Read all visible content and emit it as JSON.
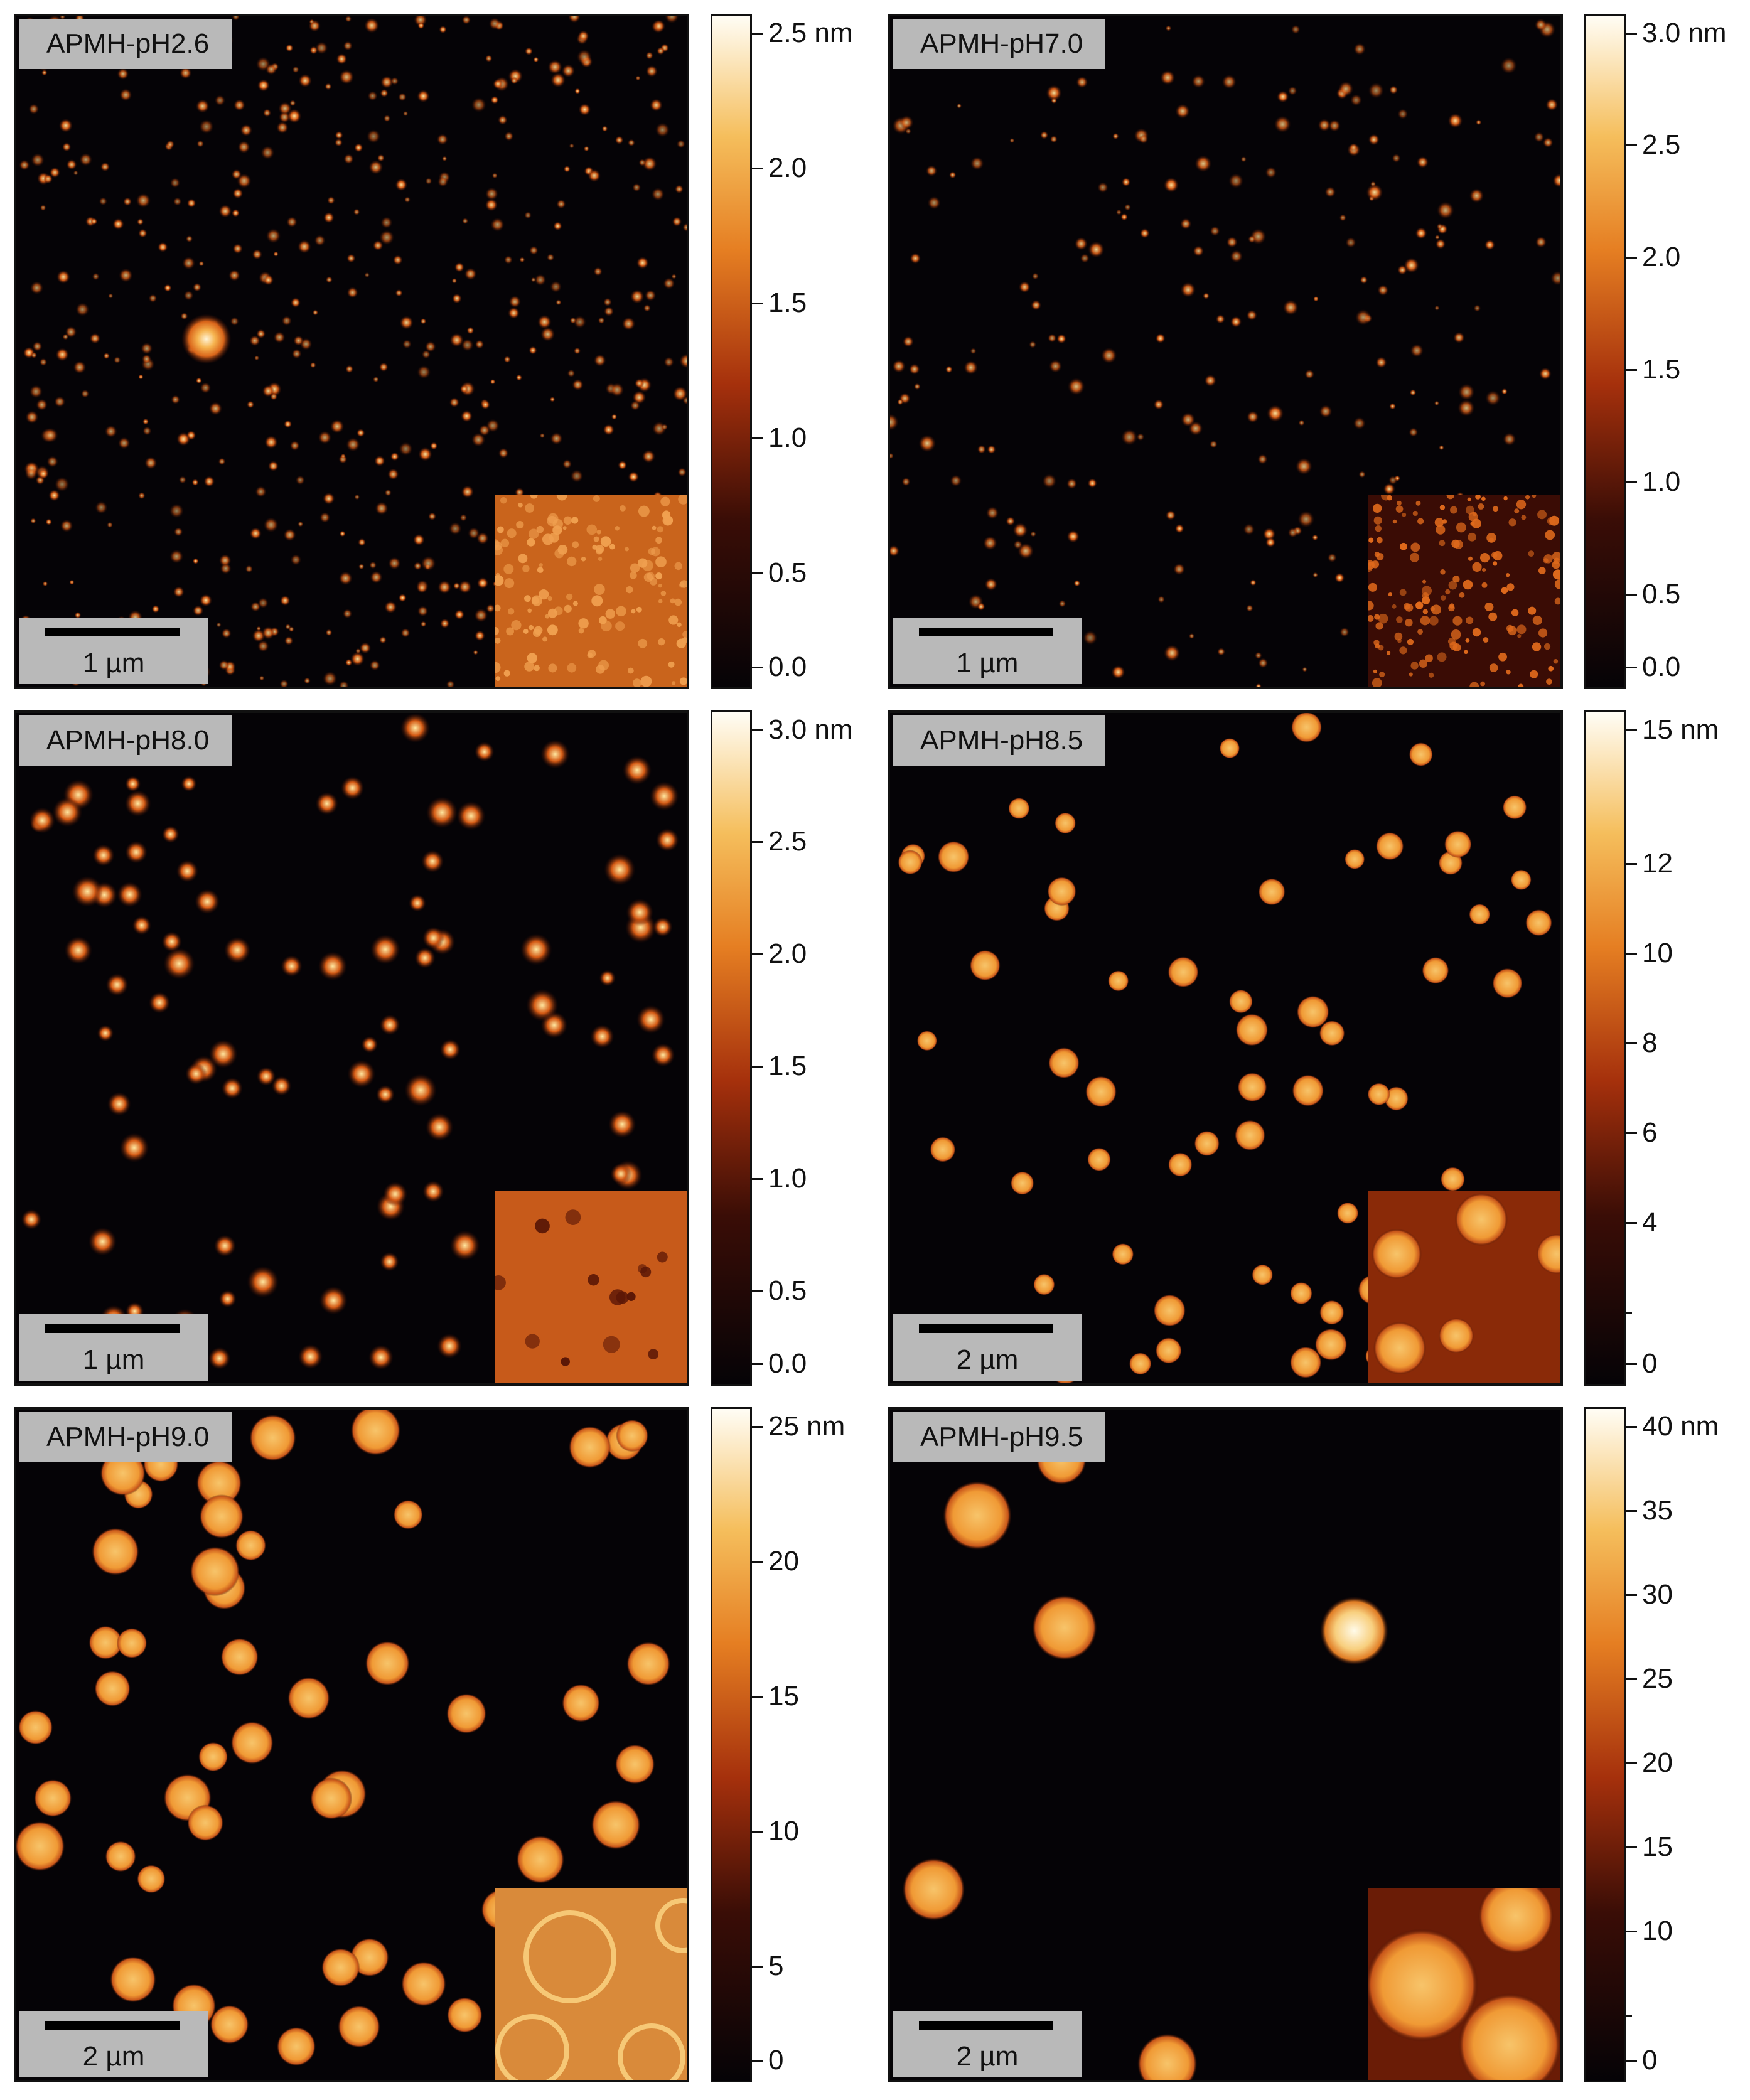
{
  "panels": [
    {
      "id": "p1",
      "label": "APMH-pH2.6",
      "scale": "1 µm",
      "colorbar_max_label": "2.5 nm",
      "colorbar_ticks": [
        "2.0",
        "1.5",
        "1.0",
        "0.5",
        "0.0"
      ]
    },
    {
      "id": "p2",
      "label": "APMH-pH7.0",
      "scale": "1 µm",
      "colorbar_max_label": "3.0 nm",
      "colorbar_ticks": [
        "2.5",
        "2.0",
        "1.5",
        "1.0",
        "0.5",
        "0.0"
      ]
    },
    {
      "id": "p3",
      "label": "APMH-pH8.0",
      "scale": "1 µm",
      "colorbar_max_label": "3.0 nm",
      "colorbar_ticks": [
        "2.5",
        "2.0",
        "1.5",
        "1.0",
        "0.5",
        "0.0"
      ]
    },
    {
      "id": "p4",
      "label": "APMH-pH8.5",
      "scale": "2 µm",
      "colorbar_max_label": "15 nm",
      "colorbar_ticks": [
        "12",
        "10",
        "8",
        "6",
        "4",
        "0"
      ]
    },
    {
      "id": "p5",
      "label": "APMH-pH9.0",
      "scale": "2 µm",
      "colorbar_max_label": "25 nm",
      "colorbar_ticks": [
        "20",
        "15",
        "10",
        "5",
        "0"
      ]
    },
    {
      "id": "p6",
      "label": "APMH-pH9.5",
      "scale": "2 µm",
      "colorbar_max_label": "40 nm",
      "colorbar_ticks": [
        "35",
        "30",
        "25",
        "20",
        "15",
        "10",
        "0"
      ]
    }
  ],
  "colors": {
    "low": "#050306",
    "mid": "#b83a10",
    "high": "#f4b24a",
    "top": "#fffaf0"
  }
}
